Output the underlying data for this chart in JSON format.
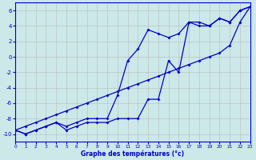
{
  "xlabel": "Graphe des températures (°c)",
  "x": [
    0,
    1,
    2,
    3,
    4,
    5,
    6,
    7,
    8,
    9,
    10,
    11,
    12,
    13,
    14,
    15,
    16,
    17,
    18,
    19,
    20,
    21,
    22,
    23
  ],
  "line_straight": [
    -9.5,
    -9.0,
    -8.5,
    -8.0,
    -7.5,
    -7.0,
    -6.5,
    -6.0,
    -5.5,
    -5.0,
    -4.5,
    -4.0,
    -3.5,
    -3.0,
    -2.5,
    -2.0,
    -1.5,
    -1.0,
    -0.5,
    0.0,
    0.5,
    1.5,
    4.5,
    6.5
  ],
  "line_high": [
    -9.5,
    -10,
    -9.5,
    -9,
    -8.5,
    -9,
    -8.5,
    -8,
    -8,
    -8,
    -5,
    -0.5,
    1,
    3.5,
    3,
    2.5,
    3,
    4.5,
    4.5,
    4,
    5,
    4.5,
    6,
    6.5
  ],
  "line_low": [
    -9.5,
    -10,
    -9.5,
    -9,
    -8.5,
    -9.5,
    -9,
    -8.5,
    -8.5,
    -8.5,
    -8,
    -8,
    -8,
    -5.5,
    -5.5,
    -0.5,
    -2,
    4.5,
    4,
    4,
    5,
    4.5,
    6,
    6.5
  ],
  "bg_color": "#cce8e8",
  "line_color": "#0000cc",
  "grid_color": "#b0b0b0",
  "ylim": [
    -11,
    7
  ],
  "xlim": [
    0,
    23
  ],
  "yticks": [
    -10,
    -8,
    -6,
    -4,
    -2,
    0,
    2,
    4,
    6
  ],
  "xticks": [
    0,
    1,
    2,
    3,
    4,
    5,
    6,
    7,
    8,
    9,
    10,
    11,
    12,
    13,
    14,
    15,
    16,
    17,
    18,
    19,
    20,
    21,
    22,
    23
  ]
}
